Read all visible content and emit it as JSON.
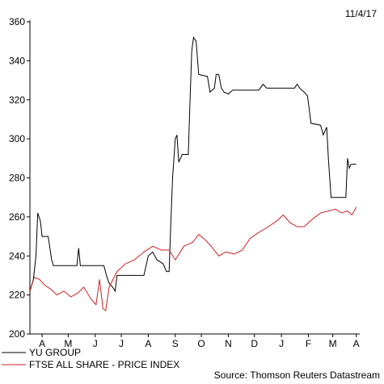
{
  "chart_data": {
    "type": "line",
    "date_label": "11/4/17",
    "source": "Source: Thomson Reuters Datastream",
    "grid": false,
    "legend_position": "bottom-left",
    "ylim": [
      200,
      360
    ],
    "yticks": [
      200,
      220,
      240,
      260,
      280,
      300,
      320,
      340,
      360
    ],
    "xlim": [
      "2016-04-01",
      "2017-04-15"
    ],
    "month_ticks": [
      {
        "label": "A",
        "date": "2016-04-15"
      },
      {
        "label": "M",
        "date": "2016-05-15"
      },
      {
        "label": "J",
        "date": "2016-06-15"
      },
      {
        "label": "J",
        "date": "2016-07-15"
      },
      {
        "label": "A",
        "date": "2016-08-15"
      },
      {
        "label": "S",
        "date": "2016-09-15"
      },
      {
        "label": "O",
        "date": "2016-10-15"
      },
      {
        "label": "N",
        "date": "2016-11-15"
      },
      {
        "label": "D",
        "date": "2016-12-15"
      },
      {
        "label": "J",
        "date": "2017-01-15"
      },
      {
        "label": "F",
        "date": "2017-02-15"
      },
      {
        "label": "M",
        "date": "2017-03-15"
      },
      {
        "label": "A",
        "date": "2017-04-11"
      }
    ],
    "series": [
      {
        "name": "YU GROUP",
        "color": "#000000",
        "points": [
          [
            "2016-04-01",
            222
          ],
          [
            "2016-04-05",
            228
          ],
          [
            "2016-04-08",
            240
          ],
          [
            "2016-04-10",
            262
          ],
          [
            "2016-04-13",
            258
          ],
          [
            "2016-04-15",
            250
          ],
          [
            "2016-04-22",
            250
          ],
          [
            "2016-04-26",
            238
          ],
          [
            "2016-04-28",
            235
          ],
          [
            "2016-05-25",
            235
          ],
          [
            "2016-05-27",
            244
          ],
          [
            "2016-05-29",
            235
          ],
          [
            "2016-06-25",
            235
          ],
          [
            "2016-06-28",
            230
          ],
          [
            "2016-07-01",
            226
          ],
          [
            "2016-07-05",
            224
          ],
          [
            "2016-07-08",
            222
          ],
          [
            "2016-07-10",
            230
          ],
          [
            "2016-08-10",
            230
          ],
          [
            "2016-08-15",
            240
          ],
          [
            "2016-08-20",
            242
          ],
          [
            "2016-08-25",
            238
          ],
          [
            "2016-09-01",
            236
          ],
          [
            "2016-09-05",
            232
          ],
          [
            "2016-09-08",
            232
          ],
          [
            "2016-09-10",
            258
          ],
          [
            "2016-09-12",
            280
          ],
          [
            "2016-09-15",
            300
          ],
          [
            "2016-09-17",
            302
          ],
          [
            "2016-09-19",
            288
          ],
          [
            "2016-09-23",
            292
          ],
          [
            "2016-09-30",
            292
          ],
          [
            "2016-10-02",
            320
          ],
          [
            "2016-10-04",
            345
          ],
          [
            "2016-10-06",
            352
          ],
          [
            "2016-10-09",
            350
          ],
          [
            "2016-10-12",
            333
          ],
          [
            "2016-10-22",
            332
          ],
          [
            "2016-10-25",
            324
          ],
          [
            "2016-10-30",
            326
          ],
          [
            "2016-11-01",
            333
          ],
          [
            "2016-11-04",
            333
          ],
          [
            "2016-11-07",
            326
          ],
          [
            "2016-11-10",
            324
          ],
          [
            "2016-11-15",
            323
          ],
          [
            "2016-11-20",
            325
          ],
          [
            "2016-12-20",
            325
          ],
          [
            "2016-12-25",
            328
          ],
          [
            "2016-12-29",
            326
          ],
          [
            "2017-01-30",
            326
          ],
          [
            "2017-02-02",
            328
          ],
          [
            "2017-02-05",
            326
          ],
          [
            "2017-02-10",
            324
          ],
          [
            "2017-02-14",
            322
          ],
          [
            "2017-02-18",
            308
          ],
          [
            "2017-03-01",
            307
          ],
          [
            "2017-03-04",
            302
          ],
          [
            "2017-03-08",
            306
          ],
          [
            "2017-03-10",
            290
          ],
          [
            "2017-03-13",
            270
          ],
          [
            "2017-03-30",
            270
          ],
          [
            "2017-04-01",
            290
          ],
          [
            "2017-04-03",
            285
          ],
          [
            "2017-04-05",
            287
          ],
          [
            "2017-04-11",
            287
          ]
        ]
      },
      {
        "name": "FTSE ALL SHARE - PRICE INDEX",
        "color": "#cc2222",
        "points": [
          [
            "2016-04-01",
            222
          ],
          [
            "2016-04-06",
            229
          ],
          [
            "2016-04-12",
            228
          ],
          [
            "2016-04-18",
            225
          ],
          [
            "2016-04-25",
            223
          ],
          [
            "2016-05-02",
            220
          ],
          [
            "2016-05-10",
            222
          ],
          [
            "2016-05-18",
            219
          ],
          [
            "2016-05-26",
            221
          ],
          [
            "2016-06-02",
            224
          ],
          [
            "2016-06-10",
            218
          ],
          [
            "2016-06-16",
            215
          ],
          [
            "2016-06-20",
            228
          ],
          [
            "2016-06-24",
            213
          ],
          [
            "2016-06-27",
            212
          ],
          [
            "2016-07-01",
            224
          ],
          [
            "2016-07-10",
            232
          ],
          [
            "2016-07-20",
            236
          ],
          [
            "2016-07-30",
            238
          ],
          [
            "2016-08-10",
            242
          ],
          [
            "2016-08-20",
            245
          ],
          [
            "2016-08-30",
            243
          ],
          [
            "2016-09-08",
            243
          ],
          [
            "2016-09-15",
            238
          ],
          [
            "2016-09-25",
            245
          ],
          [
            "2016-10-05",
            247
          ],
          [
            "2016-10-12",
            251
          ],
          [
            "2016-10-20",
            248
          ],
          [
            "2016-10-28",
            244
          ],
          [
            "2016-11-04",
            240
          ],
          [
            "2016-11-12",
            242
          ],
          [
            "2016-11-22",
            241
          ],
          [
            "2016-12-01",
            243
          ],
          [
            "2016-12-10",
            249
          ],
          [
            "2016-12-20",
            252
          ],
          [
            "2016-12-31",
            255
          ],
          [
            "2017-01-10",
            258
          ],
          [
            "2017-01-17",
            261
          ],
          [
            "2017-01-25",
            257
          ],
          [
            "2017-02-02",
            255
          ],
          [
            "2017-02-10",
            255
          ],
          [
            "2017-02-20",
            259
          ],
          [
            "2017-03-01",
            262
          ],
          [
            "2017-03-10",
            263
          ],
          [
            "2017-03-18",
            264
          ],
          [
            "2017-03-25",
            262
          ],
          [
            "2017-04-01",
            263
          ],
          [
            "2017-04-06",
            261
          ],
          [
            "2017-04-11",
            265
          ]
        ]
      }
    ]
  }
}
